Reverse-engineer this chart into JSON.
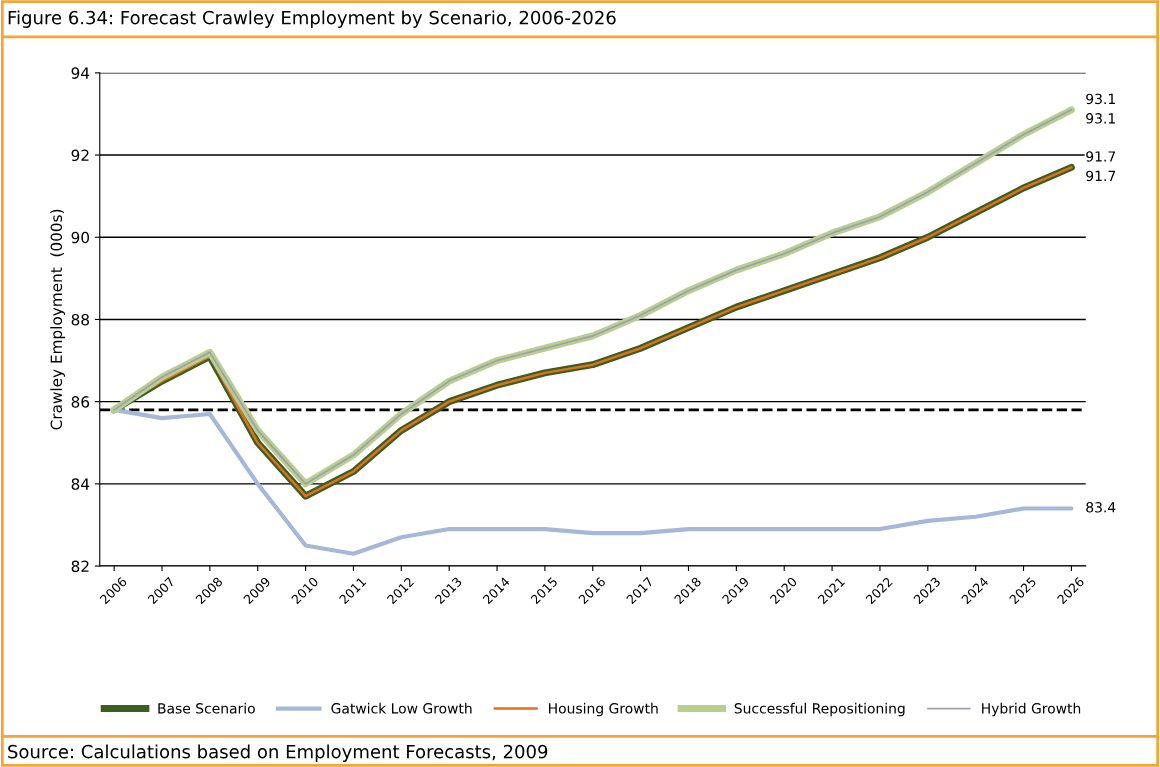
{
  "chart_data": {
    "type": "line",
    "title": "Figure 6.34: Forecast Crawley Employment by Scenario, 2006-2026",
    "ylabel": "Crawley Employment  (000s)",
    "categories": [
      "2006",
      "2007",
      "2008",
      "2009",
      "2010",
      "2011",
      "2012",
      "2013",
      "2014",
      "2015",
      "2016",
      "2017",
      "2018",
      "2019",
      "2020",
      "2021",
      "2022",
      "2023",
      "2024",
      "2025",
      "2026"
    ],
    "series": [
      {
        "name": "Base Scenario",
        "color": "#3a5f1e",
        "values": [
          85.8,
          86.5,
          87.1,
          85.0,
          83.7,
          84.3,
          85.3,
          86.0,
          86.4,
          86.7,
          86.9,
          87.3,
          87.8,
          88.3,
          88.7,
          89.1,
          89.5,
          90.0,
          90.6,
          91.2,
          91.7
        ],
        "value_labels": [
          null,
          null,
          null,
          null,
          null,
          null,
          null,
          null,
          null,
          null,
          null,
          null,
          null,
          null,
          null,
          null,
          null,
          null,
          null,
          null,
          "91.7"
        ]
      },
      {
        "name": "Gatwick Low Growth",
        "color": "#a6b8d8",
        "values": [
          85.8,
          85.6,
          85.7,
          84.0,
          82.5,
          82.3,
          82.7,
          82.9,
          82.9,
          82.9,
          82.8,
          82.8,
          82.9,
          82.9,
          82.9,
          82.9,
          82.9,
          83.1,
          83.2,
          83.4,
          83.4
        ],
        "value_labels": [
          null,
          null,
          null,
          null,
          null,
          null,
          null,
          null,
          null,
          null,
          null,
          null,
          null,
          null,
          null,
          null,
          null,
          null,
          null,
          null,
          "83.4"
        ]
      },
      {
        "name": "Housing Growth",
        "color": "#e07020",
        "values": [
          85.8,
          86.5,
          87.1,
          85.0,
          83.7,
          84.3,
          85.3,
          86.0,
          86.4,
          86.7,
          86.9,
          87.3,
          87.8,
          88.3,
          88.7,
          89.1,
          89.5,
          90.0,
          90.6,
          91.2,
          91.7
        ],
        "value_labels": [
          null,
          null,
          null,
          null,
          null,
          null,
          null,
          null,
          null,
          null,
          null,
          null,
          null,
          null,
          null,
          null,
          null,
          null,
          null,
          null,
          "91.7"
        ]
      },
      {
        "name": "Successful Repositioning",
        "color": "#b8d08c",
        "values": [
          85.8,
          86.6,
          87.2,
          85.3,
          84.0,
          84.7,
          85.7,
          86.5,
          87.0,
          87.3,
          87.6,
          88.1,
          88.7,
          89.2,
          89.6,
          90.1,
          90.5,
          91.1,
          91.8,
          92.5,
          93.1
        ],
        "value_labels": [
          null,
          null,
          null,
          null,
          null,
          null,
          null,
          null,
          null,
          null,
          null,
          null,
          null,
          null,
          null,
          null,
          null,
          null,
          null,
          null,
          "93.1"
        ]
      },
      {
        "name": "Hybrid Growth",
        "color": "#a09cb8",
        "values": [
          85.8,
          86.6,
          87.2,
          85.3,
          84.0,
          84.7,
          85.7,
          86.5,
          87.0,
          87.3,
          87.6,
          88.1,
          88.7,
          89.2,
          89.6,
          90.1,
          90.5,
          91.1,
          91.8,
          92.5,
          93.1
        ],
        "value_labels": [
          null,
          null,
          null,
          null,
          null,
          null,
          null,
          null,
          null,
          null,
          null,
          null,
          null,
          null,
          null,
          null,
          null,
          null,
          null,
          null,
          "93.1"
        ]
      }
    ],
    "ylim": [
      82,
      94
    ],
    "yticks": [
      82,
      84,
      86,
      88,
      90,
      92,
      94
    ],
    "grid": "y",
    "legend": "bottom",
    "ref_lines": [
      {
        "axis": "y",
        "value": 85.8,
        "color": "#000000",
        "line_style": "dashed"
      }
    ],
    "annotations": [
      "Source: Calculations based on Employment Forecasts, 2009"
    ]
  }
}
